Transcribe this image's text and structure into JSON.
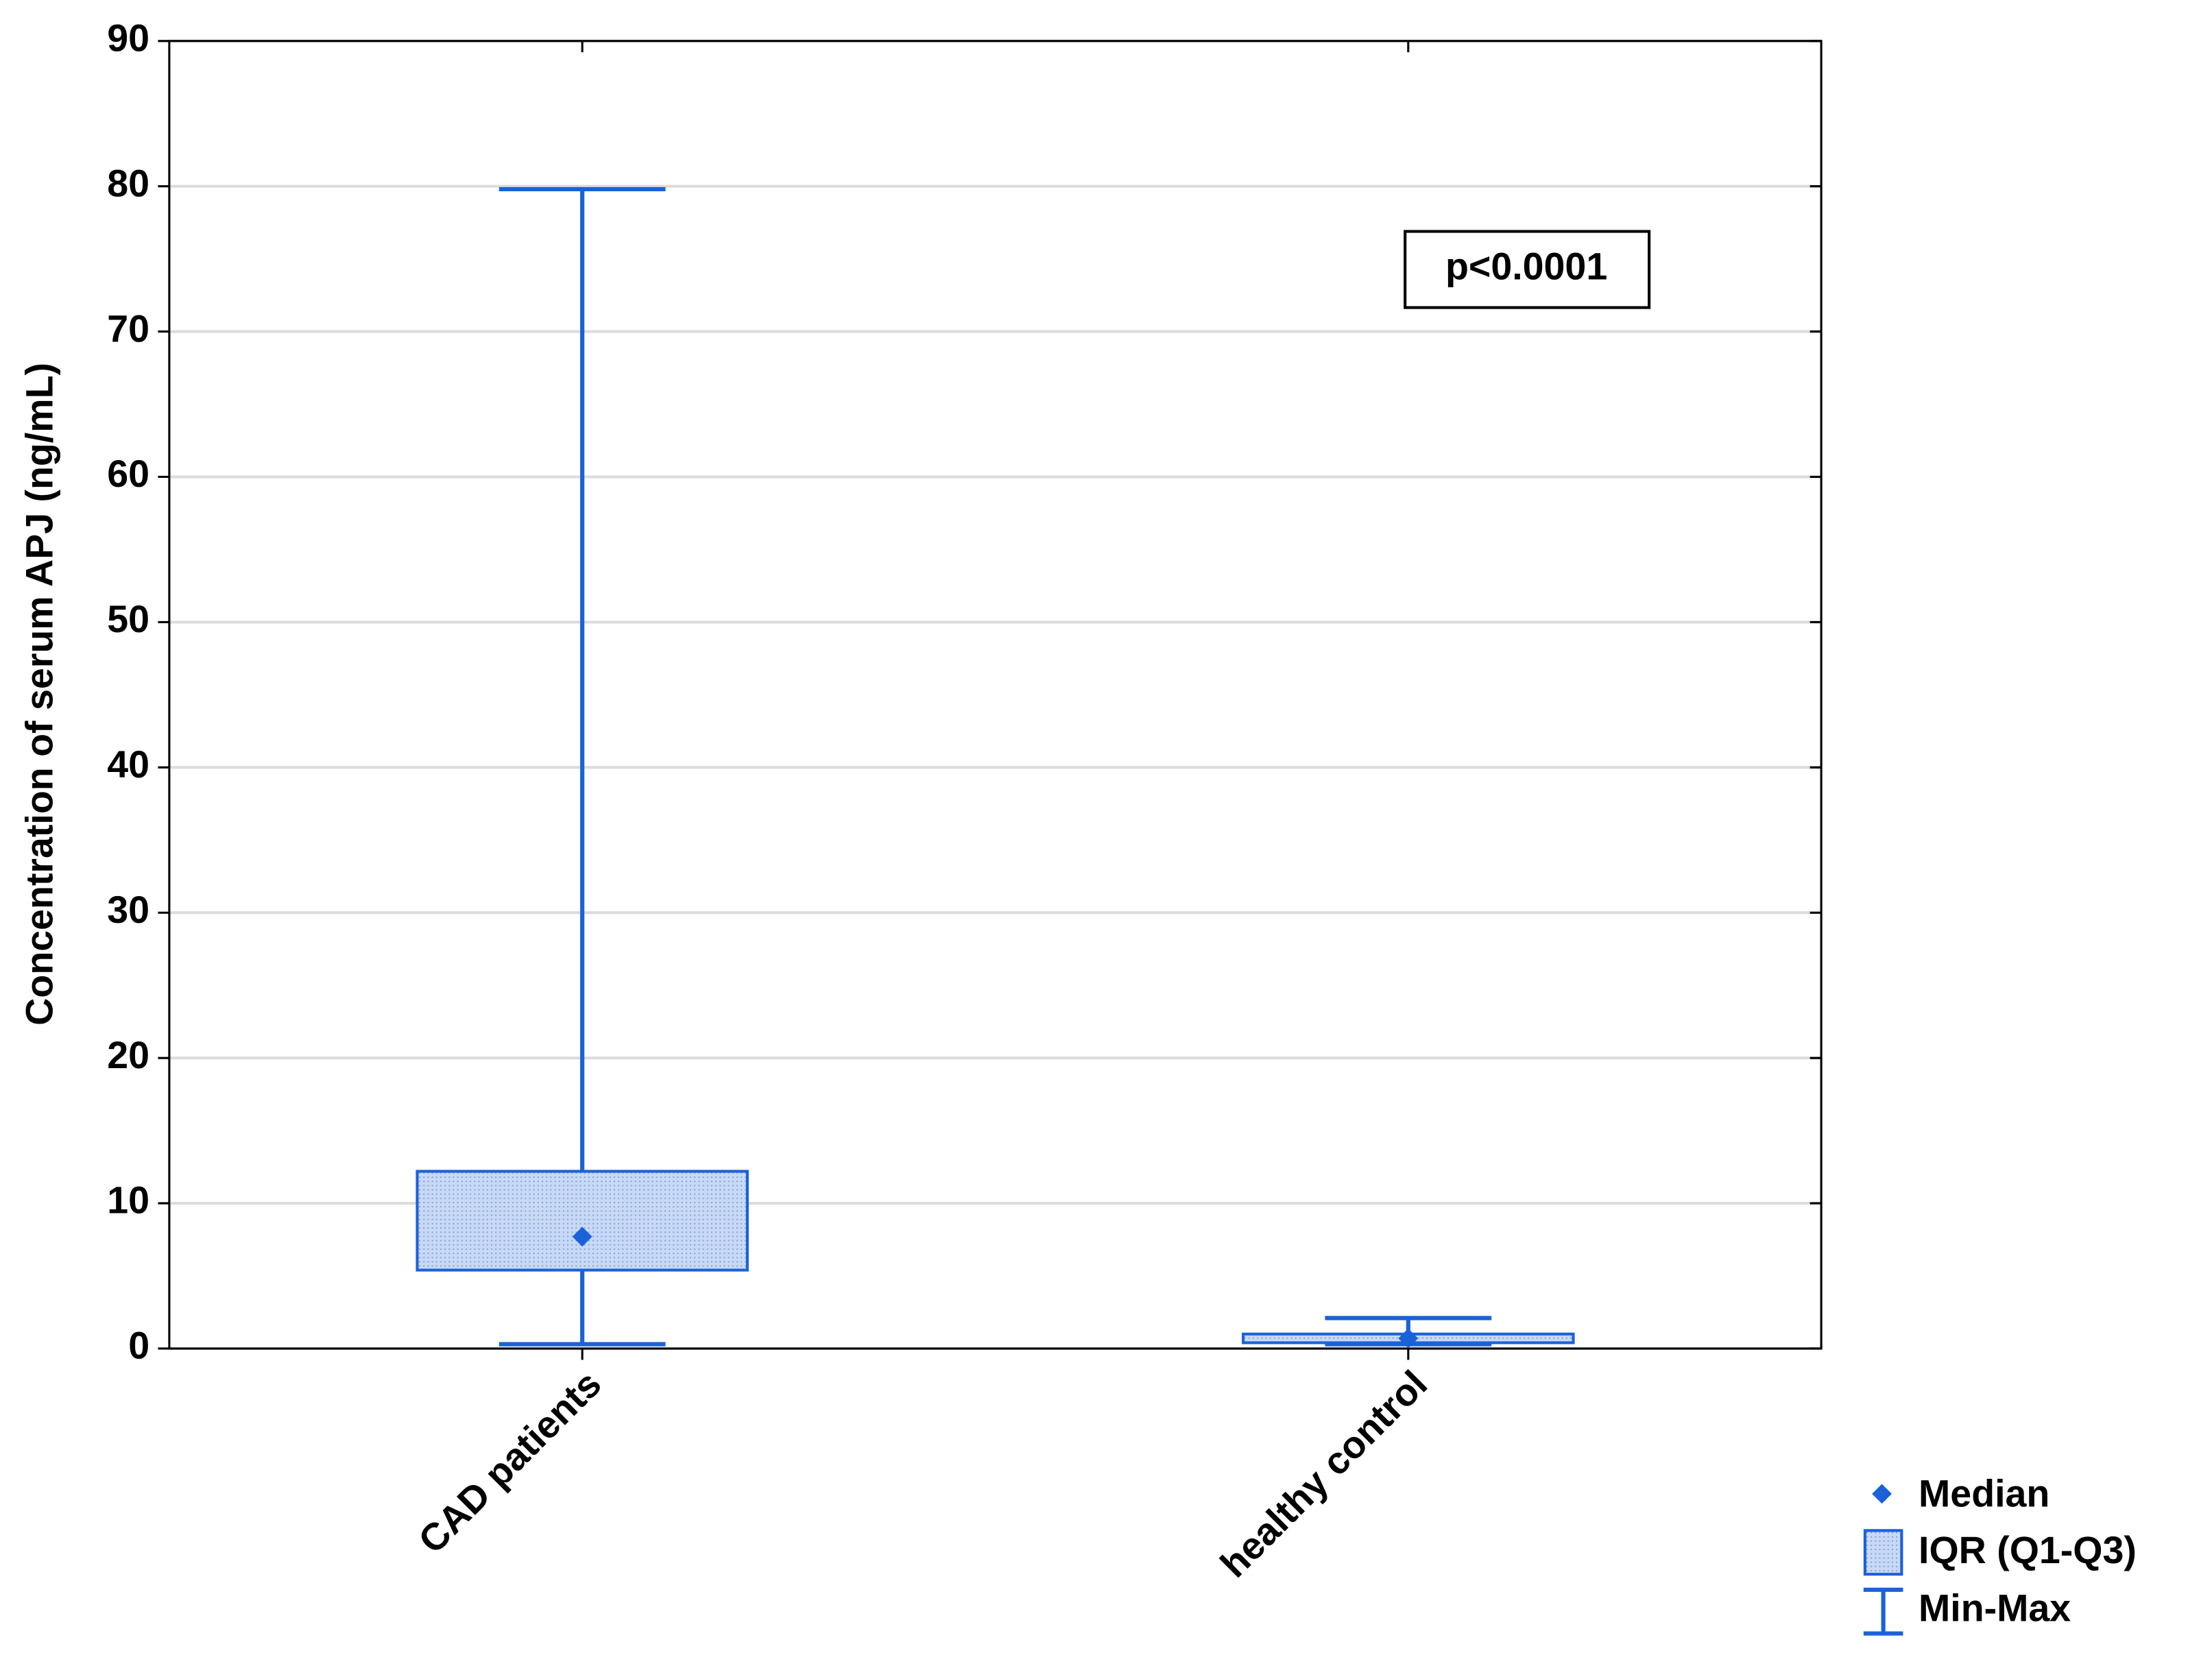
{
  "chart_data": {
    "type": "box",
    "y_label": "Concentration of serum APJ (ng/mL)",
    "categories": [
      "CAD patients",
      "healthy control"
    ],
    "boxes": [
      {
        "min": 0.3,
        "q1": 5.4,
        "median": 7.7,
        "q3": 12.2,
        "max": 79.8
      },
      {
        "min": 0.3,
        "q1": 0.4,
        "median": 0.7,
        "q3": 1.0,
        "max": 2.1
      }
    ],
    "color": "#1a62d8",
    "box_fill": "#b9cef2",
    "ylim": [
      0,
      90
    ],
    "yticks": [
      0,
      10,
      20,
      30,
      40,
      50,
      60,
      70,
      80,
      90
    ],
    "grid": true,
    "annotation": "p<0.0001",
    "legend": {
      "median": "Median",
      "iqr": "IQR (Q1-Q3)",
      "range": "Min-Max"
    }
  }
}
